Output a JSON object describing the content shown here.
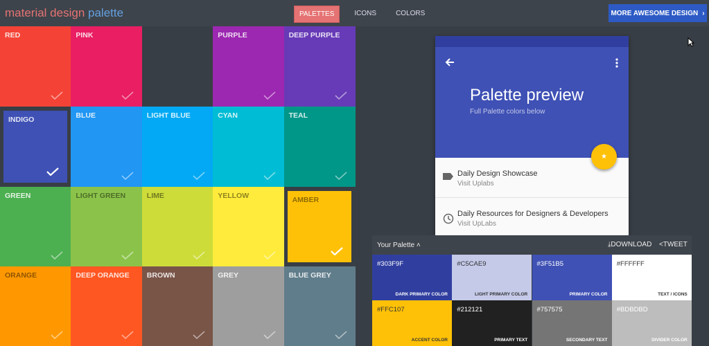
{
  "header": {
    "logo_part1": "material design",
    "logo_part2": "palette",
    "nav": [
      "PALETTES",
      "ICONS",
      "COLORS"
    ],
    "active_nav": "PALETTES",
    "more_button": "MORE AWESOME DESIGN"
  },
  "colors": [
    {
      "name": "RED",
      "hex": "#f44336",
      "row": 0,
      "col": 0
    },
    {
      "name": "PINK",
      "hex": "#e91e63",
      "row": 0,
      "col": 1
    },
    {
      "name": "PURPLE",
      "hex": "#9c27b0",
      "row": 0,
      "col": 3
    },
    {
      "name": "DEEP PURPLE",
      "hex": "#673ab7",
      "row": 0,
      "col": 4
    },
    {
      "name": "INDIGO",
      "hex": "#3f51b5",
      "row": 1,
      "col": 0,
      "selected": true
    },
    {
      "name": "BLUE",
      "hex": "#2196f3",
      "row": 1,
      "col": 1
    },
    {
      "name": "LIGHT BLUE",
      "hex": "#03a9f4",
      "row": 1,
      "col": 2
    },
    {
      "name": "CYAN",
      "hex": "#00bcd4",
      "row": 1,
      "col": 3
    },
    {
      "name": "TEAL",
      "hex": "#009688",
      "row": 1,
      "col": 4
    },
    {
      "name": "GREEN",
      "hex": "#4caf50",
      "row": 2,
      "col": 0
    },
    {
      "name": "LIGHT GREEN",
      "hex": "#8bc34a",
      "row": 2,
      "col": 1,
      "dark": true
    },
    {
      "name": "LIME",
      "hex": "#cddc39",
      "row": 2,
      "col": 2,
      "dark": true
    },
    {
      "name": "YELLOW",
      "hex": "#ffeb3b",
      "row": 2,
      "col": 3,
      "dark": true
    },
    {
      "name": "AMBER",
      "hex": "#ffc107",
      "row": 2,
      "col": 4,
      "selected": true,
      "dark": true
    },
    {
      "name": "ORANGE",
      "hex": "#ff9800",
      "row": 3,
      "col": 0,
      "dark": true
    },
    {
      "name": "DEEP ORANGE",
      "hex": "#ff5722",
      "row": 3,
      "col": 1
    },
    {
      "name": "BROWN",
      "hex": "#795548",
      "row": 3,
      "col": 2
    },
    {
      "name": "GREY",
      "hex": "#9e9e9e",
      "row": 3,
      "col": 3
    },
    {
      "name": "BLUE GREY",
      "hex": "#607d8b",
      "row": 3,
      "col": 4
    }
  ],
  "preview": {
    "title": "Palette preview",
    "subtitle": "Full Palette colors below",
    "items": [
      {
        "title": "Daily Design Showcase",
        "sub": "Visit Uplabs",
        "icon": "label-icon"
      },
      {
        "title": "Daily Resources for Designers & Developers",
        "sub": "Visit UpLabs",
        "icon": "clock-icon"
      }
    ]
  },
  "palette": {
    "title": "Your Palette",
    "download": "DOWNLOAD",
    "tweet": "TWEET",
    "swatches": [
      {
        "hex": "#303F9F",
        "name": "DARK PRIMARY COLOR",
        "fg": "#ffffff"
      },
      {
        "hex": "#C5CAE9",
        "name": "LIGHT PRIMARY COLOR",
        "fg": "#333333"
      },
      {
        "hex": "#3F51B5",
        "name": "PRIMARY COLOR",
        "fg": "#ffffff"
      },
      {
        "hex": "#FFFFFF",
        "name": "TEXT / ICONS",
        "fg": "#333333"
      },
      {
        "hex": "#FFC107",
        "name": "ACCENT COLOR",
        "fg": "#333333"
      },
      {
        "hex": "#212121",
        "name": "PRIMARY TEXT",
        "fg": "#ffffff"
      },
      {
        "hex": "#757575",
        "name": "SECONDARY TEXT",
        "fg": "#ffffff"
      },
      {
        "hex": "#BDBDBD",
        "name": "DIVIDER COLOR",
        "fg": "#ffffff"
      }
    ]
  }
}
